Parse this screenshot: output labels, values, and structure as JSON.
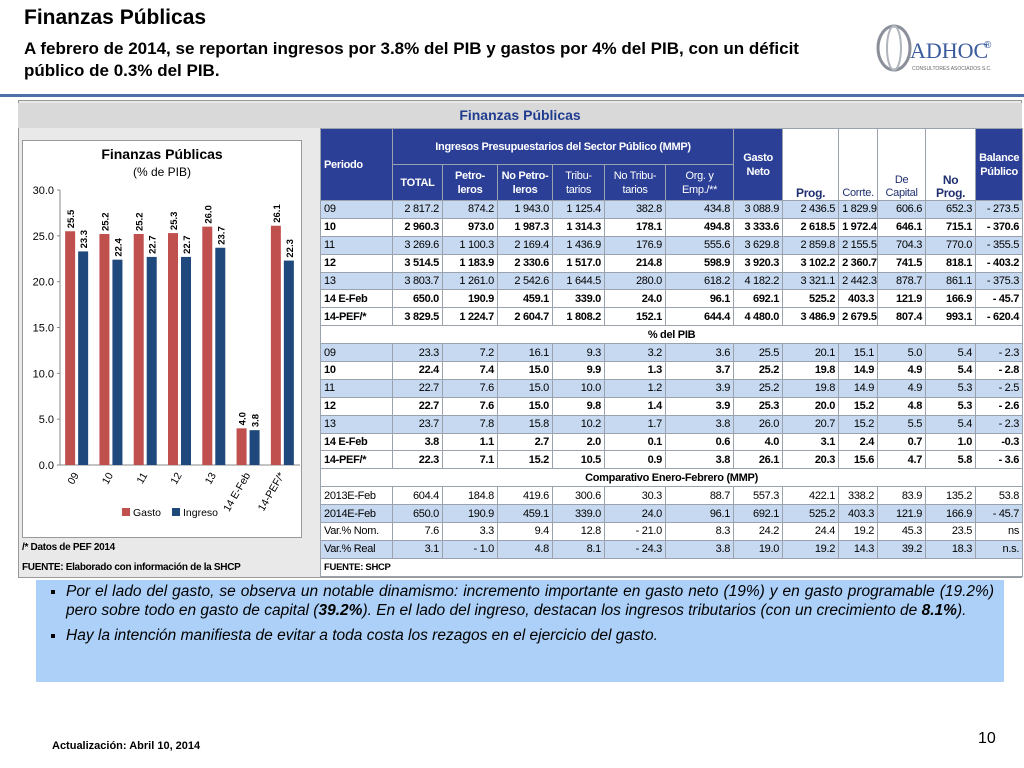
{
  "header": {
    "title": "Finanzas Públicas",
    "subtitle": "A febrero de 2014, se reportan ingresos  por 3.8% del PIB y gastos por 4% del PIB, con un déficit público de 0.3% del PIB."
  },
  "logo": {
    "name": "ADHOC",
    "mark": "®",
    "tagline": "CONSULTORES ASOCIADOS S.C."
  },
  "chart_data": {
    "type": "bar",
    "title": "Finanzas Públicas",
    "subtitle": "(% de PIB)",
    "categories": [
      "09",
      "10",
      "11",
      "12",
      "13",
      "14 E-Feb",
      "14-PEF/*"
    ],
    "series": [
      {
        "name": "Gasto",
        "color": "#c0504d",
        "values": [
          25.5,
          25.2,
          25.2,
          25.3,
          26.0,
          4.0,
          26.1
        ],
        "value_labels": [
          "25.5",
          "25.2",
          "25.2",
          "25.3",
          "26.0",
          "4.0",
          "26.1"
        ]
      },
      {
        "name": "Ingreso",
        "color": "#1f497d",
        "values": [
          23.3,
          22.4,
          22.7,
          22.7,
          23.7,
          3.8,
          22.3
        ],
        "value_labels": [
          "23.3",
          "22.4",
          "22.7",
          "22.7",
          "23.7",
          "3.8",
          "22.3"
        ]
      }
    ],
    "ylim": [
      0,
      30
    ],
    "yticks": [
      {
        "value": 0,
        "label": "0.0"
      },
      {
        "value": 5,
        "label": "5.0"
      },
      {
        "value": 10,
        "label": "10.0"
      },
      {
        "value": 15,
        "label": "15.0"
      },
      {
        "value": 20,
        "label": "20.0"
      },
      {
        "value": 25,
        "label": "25.0"
      },
      {
        "value": 30,
        "label": "30.0"
      }
    ],
    "grid": false,
    "legend": "bottom"
  },
  "notes": [
    "/* Datos de PEF 2014",
    "FUENTE: Elaborado con información de la SHCP"
  ],
  "table": {
    "title": "Finanzas Públicas",
    "group_header": "Ingresos Presupuestarios del Sector Público (MMP)",
    "columns": [
      "Periodo",
      "TOTAL",
      "Petro-leros",
      "No Petro-leros",
      "Tribu-tarios",
      "No Tribu-tarios",
      "Org. y Emp./**",
      "Gasto Neto",
      "Prog.",
      "Corrte.",
      "De Capital",
      "No Prog.",
      "Balance Público"
    ],
    "sections": [
      {
        "rows": [
          [
            "09",
            "2 817.2",
            "874.2",
            "1 943.0",
            "1 125.4",
            "382.8",
            "434.8",
            "3 088.9",
            "2 436.5",
            "1 829.9",
            "606.6",
            "652.3",
            "- 273.5"
          ],
          [
            "10",
            "2 960.3",
            "973.0",
            "1 987.3",
            "1 314.3",
            "178.1",
            "494.8",
            "3 333.6",
            "2 618.5",
            "1 972.4",
            "646.1",
            "715.1",
            "- 370.6"
          ],
          [
            "11",
            "3 269.6",
            "1 100.3",
            "2 169.4",
            "1 436.9",
            "176.9",
            "555.6",
            "3 629.8",
            "2 859.8",
            "2 155.5",
            "704.3",
            "770.0",
            "- 355.5"
          ],
          [
            "12",
            "3 514.5",
            "1 183.9",
            "2 330.6",
            "1 517.0",
            "214.8",
            "598.9",
            "3 920.3",
            "3 102.2",
            "2 360.7",
            "741.5",
            "818.1",
            "- 403.2"
          ],
          [
            "13",
            "3 803.7",
            "1 261.0",
            "2 542.6",
            "1 644.5",
            "280.0",
            "618.2",
            "4 182.2",
            "3 321.1",
            "2 442.3",
            "878.7",
            "861.1",
            "- 375.3"
          ],
          [
            "14 E-Feb",
            "650.0",
            "190.9",
            "459.1",
            "339.0",
            "24.0",
            "96.1",
            "692.1",
            "525.2",
            "403.3",
            "121.9",
            "166.9",
            "- 45.7"
          ],
          [
            "14-PEF/*",
            "3 829.5",
            "1 224.7",
            "2 604.7",
            "1 808.2",
            "152.1",
            "644.4",
            "4 480.0",
            "3 486.9",
            "2 679.5",
            "807.4",
            "993.1",
            "- 620.4"
          ]
        ]
      },
      {
        "label": "% del PIB",
        "rows": [
          [
            "09",
            "23.3",
            "7.2",
            "16.1",
            "9.3",
            "3.2",
            "3.6",
            "25.5",
            "20.1",
            "15.1",
            "5.0",
            "5.4",
            "- 2.3"
          ],
          [
            "10",
            "22.4",
            "7.4",
            "15.0",
            "9.9",
            "1.3",
            "3.7",
            "25.2",
            "19.8",
            "14.9",
            "4.9",
            "5.4",
            "- 2.8"
          ],
          [
            "11",
            "22.7",
            "7.6",
            "15.0",
            "10.0",
            "1.2",
            "3.9",
            "25.2",
            "19.8",
            "14.9",
            "4.9",
            "5.3",
            "- 2.5"
          ],
          [
            "12",
            "22.7",
            "7.6",
            "15.0",
            "9.8",
            "1.4",
            "3.9",
            "25.3",
            "20.0",
            "15.2",
            "4.8",
            "5.3",
            "- 2.6"
          ],
          [
            "13",
            "23.7",
            "7.8",
            "15.8",
            "10.2",
            "1.7",
            "3.8",
            "26.0",
            "20.7",
            "15.2",
            "5.5",
            "5.4",
            "- 2.3"
          ],
          [
            "14 E-Feb",
            "3.8",
            "1.1",
            "2.7",
            "2.0",
            "0.1",
            "0.6",
            "4.0",
            "3.1",
            "2.4",
            "0.7",
            "1.0",
            "-0.3"
          ],
          [
            "14-PEF/*",
            "22.3",
            "7.1",
            "15.2",
            "10.5",
            "0.9",
            "3.8",
            "26.1",
            "20.3",
            "15.6",
            "4.7",
            "5.8",
            "- 3.6"
          ]
        ]
      },
      {
        "label": "Comparativo Enero-Febrero (MMP)",
        "rows": [
          [
            "2013E-Feb",
            "604.4",
            "184.8",
            "419.6",
            "300.6",
            "30.3",
            "88.7",
            "557.3",
            "422.1",
            "338.2",
            "83.9",
            "135.2",
            "53.8"
          ],
          [
            "2014E-Feb",
            "650.0",
            "190.9",
            "459.1",
            "339.0",
            "24.0",
            "96.1",
            "692.1",
            "525.2",
            "403.3",
            "121.9",
            "166.9",
            "- 45.7"
          ],
          [
            "Var.% Nom.",
            "7.6",
            "3.3",
            "9.4",
            "12.8",
            "- 21.0",
            "8.3",
            "24.2",
            "24.4",
            "19.2",
            "45.3",
            "23.5",
            "ns"
          ],
          [
            "Var.% Real",
            "3.1",
            "- 1.0",
            "4.8",
            "8.1",
            "- 24.3",
            "3.8",
            "19.0",
            "19.2",
            "14.3",
            "39.2",
            "18.3",
            "n.s."
          ]
        ]
      }
    ],
    "source": "FUENTE: SHCP"
  },
  "bullets": [
    {
      "parts": [
        "Por el lado del gasto, se observa un notable dinamismo: incremento importante en gasto neto (19%) y en gasto programable (19.2%) pero sobre todo en gasto de capital (",
        "39.2%",
        "). En el lado del ingreso, destacan los ingresos tributarios (con un crecimiento de ",
        "8.1%",
        ")."
      ]
    },
    {
      "parts": [
        "Hay la intención manifiesta de evitar a toda costa los rezagos en el ejercicio del gasto."
      ]
    }
  ],
  "footer": {
    "updated": "Actualización:  Abril 10, 2014",
    "page": "10"
  }
}
